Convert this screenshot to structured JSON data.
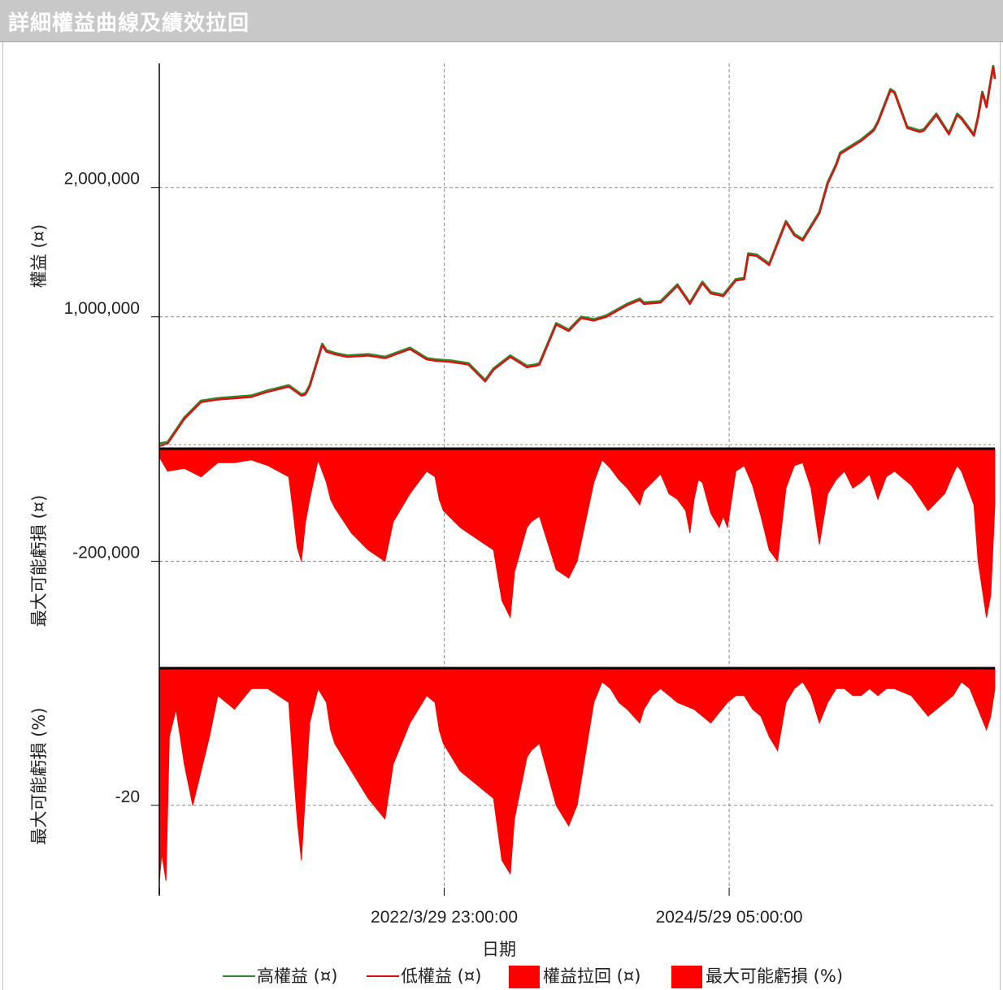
{
  "window": {
    "title": "詳細權益曲線及績效拉回"
  },
  "colors": {
    "high_equity": "#2e8b2e",
    "low_equity": "#e01010",
    "drawdown_fill": "#ff0000",
    "grid": "#8c8c8c",
    "axis": "#000000"
  },
  "chart_data": [
    {
      "type": "line",
      "ylabel": "權益 (¤)",
      "ylim": [
        -20000,
        2960000
      ],
      "yticks": [
        1000000,
        2000000
      ],
      "ytick_labels": [
        "1,000,000",
        "2,000,000"
      ],
      "grid": true,
      "x": [
        0,
        0.01,
        0.03,
        0.05,
        0.07,
        0.09,
        0.11,
        0.13,
        0.155,
        0.17,
        0.175,
        0.18,
        0.195,
        0.2,
        0.21,
        0.225,
        0.25,
        0.27,
        0.3,
        0.32,
        0.33,
        0.35,
        0.37,
        0.39,
        0.4,
        0.42,
        0.44,
        0.45,
        0.455,
        0.475,
        0.49,
        0.505,
        0.52,
        0.525,
        0.53,
        0.535,
        0.56,
        0.575,
        0.58,
        0.6,
        0.62,
        0.635,
        0.65,
        0.66,
        0.675,
        0.69,
        0.7,
        0.7,
        0.705,
        0.715,
        0.73,
        0.75,
        0.76,
        0.77,
        0.79,
        0.8,
        0.81,
        0.815,
        0.84,
        0.855,
        0.86,
        0.875,
        0.88,
        0.895,
        0.9,
        0.91,
        0.915,
        0.93,
        0.945,
        0.955,
        0.96,
        0.975,
        0.98,
        0.985,
        0.99,
        0.995,
        0.998,
        1.0
      ],
      "series": [
        {
          "name": "高權益 (¤)",
          "values": [
            20000,
            30000,
            220000,
            350000,
            370000,
            380000,
            390000,
            430000,
            470000,
            400000,
            410000,
            470000,
            790000,
            740000,
            720000,
            700000,
            710000,
            690000,
            760000,
            680000,
            670000,
            660000,
            640000,
            510000,
            600000,
            700000,
            620000,
            630000,
            640000,
            950000,
            900000,
            1000000,
            980000,
            990000,
            1000000,
            1010000,
            1100000,
            1140000,
            1110000,
            1120000,
            1250000,
            1110000,
            1270000,
            1190000,
            1170000,
            1290000,
            1300000,
            1300000,
            1490000,
            1480000,
            1410000,
            1740000,
            1640000,
            1600000,
            1810000,
            2040000,
            2180000,
            2270000,
            2370000,
            2450000,
            2510000,
            2760000,
            2740000,
            2470000,
            2460000,
            2440000,
            2450000,
            2570000,
            2420000,
            2570000,
            2540000,
            2410000,
            2550000,
            2740000,
            2630000,
            2830000,
            2940000,
            2850000
          ]
        },
        {
          "name": "低權益 (¤)",
          "values": [
            0,
            20000,
            210000,
            340000,
            360000,
            370000,
            380000,
            420000,
            460000,
            390000,
            400000,
            460000,
            780000,
            730000,
            710000,
            690000,
            700000,
            680000,
            750000,
            670000,
            660000,
            650000,
            630000,
            500000,
            590000,
            690000,
            610000,
            620000,
            630000,
            940000,
            890000,
            990000,
            970000,
            980000,
            990000,
            1000000,
            1090000,
            1130000,
            1100000,
            1110000,
            1240000,
            1100000,
            1260000,
            1180000,
            1160000,
            1280000,
            1290000,
            1290000,
            1480000,
            1470000,
            1400000,
            1730000,
            1630000,
            1590000,
            1800000,
            2030000,
            2170000,
            2260000,
            2360000,
            2440000,
            2500000,
            2750000,
            2730000,
            2460000,
            2450000,
            2430000,
            2440000,
            2560000,
            2410000,
            2560000,
            2530000,
            2400000,
            2540000,
            2730000,
            2620000,
            2820000,
            2930000,
            2840000
          ]
        }
      ]
    },
    {
      "type": "area",
      "ylabel": "最大可能虧損 (¤)",
      "ylim": [
        -390000,
        0
      ],
      "yticks": [
        -200000
      ],
      "ytick_labels": [
        "-200,000"
      ],
      "grid": true,
      "series": [
        {
          "name": "權益拉回 (¤)",
          "x": [
            0,
            0.01,
            0.03,
            0.05,
            0.07,
            0.09,
            0.11,
            0.13,
            0.155,
            0.16,
            0.165,
            0.17,
            0.175,
            0.18,
            0.19,
            0.2,
            0.205,
            0.21,
            0.23,
            0.25,
            0.27,
            0.28,
            0.3,
            0.32,
            0.33,
            0.335,
            0.34,
            0.36,
            0.38,
            0.4,
            0.41,
            0.42,
            0.425,
            0.44,
            0.445,
            0.455,
            0.475,
            0.49,
            0.5,
            0.52,
            0.53,
            0.54,
            0.55,
            0.56,
            0.575,
            0.58,
            0.59,
            0.6,
            0.61,
            0.62,
            0.63,
            0.635,
            0.64,
            0.645,
            0.65,
            0.66,
            0.67,
            0.675,
            0.68,
            0.69,
            0.7,
            0.71,
            0.72,
            0.73,
            0.74,
            0.75,
            0.76,
            0.77,
            0.78,
            0.79,
            0.8,
            0.81,
            0.82,
            0.83,
            0.84,
            0.85,
            0.86,
            0.87,
            0.88,
            0.9,
            0.92,
            0.94,
            0.95,
            0.955,
            0.96,
            0.97,
            0.975,
            0.98,
            0.99,
            0.995,
            1.0
          ],
          "values": [
            -15000,
            -40000,
            -35000,
            -50000,
            -25000,
            -25000,
            -20000,
            -30000,
            -50000,
            -110000,
            -175000,
            -200000,
            -130000,
            -90000,
            -20000,
            -60000,
            -90000,
            -105000,
            -150000,
            -180000,
            -200000,
            -130000,
            -80000,
            -40000,
            -50000,
            -90000,
            -110000,
            -140000,
            -160000,
            -180000,
            -270000,
            -300000,
            -220000,
            -140000,
            -130000,
            -120000,
            -215000,
            -230000,
            -200000,
            -60000,
            -20000,
            -35000,
            -55000,
            -70000,
            -100000,
            -75000,
            -60000,
            -45000,
            -80000,
            -90000,
            -110000,
            -150000,
            -90000,
            -55000,
            -60000,
            -115000,
            -140000,
            -120000,
            -140000,
            -40000,
            -30000,
            -65000,
            -120000,
            -180000,
            -200000,
            -70000,
            -30000,
            -25000,
            -70000,
            -170000,
            -80000,
            -55000,
            -40000,
            -70000,
            -60000,
            -45000,
            -90000,
            -50000,
            -40000,
            -65000,
            -110000,
            -80000,
            -45000,
            -30000,
            -40000,
            -80000,
            -100000,
            -200000,
            -300000,
            -260000,
            -100000
          ]
        }
      ]
    },
    {
      "type": "area",
      "ylabel": "最大可能虧損 (%)",
      "ylim": [
        -32,
        0
      ],
      "yticks": [
        -20
      ],
      "ytick_labels": [
        "-20"
      ],
      "grid": true,
      "xlabel": "日期",
      "xtick_labels": [
        "2022/3/29 23:00:00",
        "2024/5/29 05:00:00"
      ],
      "xtick_positions": [
        0.341,
        0.682
      ],
      "series": [
        {
          "name": "最大可能虧損 (%)",
          "x": [
            0,
            0.003,
            0.008,
            0.012,
            0.02,
            0.03,
            0.04,
            0.05,
            0.06,
            0.07,
            0.09,
            0.11,
            0.13,
            0.155,
            0.16,
            0.165,
            0.17,
            0.175,
            0.18,
            0.19,
            0.2,
            0.205,
            0.21,
            0.23,
            0.25,
            0.27,
            0.28,
            0.3,
            0.32,
            0.33,
            0.335,
            0.34,
            0.36,
            0.38,
            0.4,
            0.41,
            0.42,
            0.425,
            0.44,
            0.445,
            0.455,
            0.475,
            0.49,
            0.5,
            0.52,
            0.53,
            0.54,
            0.55,
            0.56,
            0.575,
            0.58,
            0.59,
            0.6,
            0.62,
            0.64,
            0.66,
            0.68,
            0.69,
            0.7,
            0.71,
            0.72,
            0.73,
            0.74,
            0.75,
            0.76,
            0.77,
            0.78,
            0.79,
            0.8,
            0.81,
            0.82,
            0.83,
            0.84,
            0.85,
            0.86,
            0.87,
            0.88,
            0.9,
            0.92,
            0.94,
            0.95,
            0.96,
            0.97,
            0.98,
            0.99,
            0.995,
            1.0
          ],
          "values": [
            -31,
            -27,
            -31,
            -10,
            -6,
            -14,
            -20,
            -15,
            -10,
            -4,
            -6,
            -3,
            -3,
            -5,
            -14,
            -22,
            -28,
            -18,
            -8,
            -3,
            -5,
            -9,
            -11,
            -15,
            -19,
            -22,
            -14,
            -8,
            -4,
            -5,
            -9,
            -11,
            -15,
            -17,
            -19,
            -28,
            -30,
            -22,
            -13,
            -12,
            -11,
            -20,
            -23,
            -20,
            -5,
            -2,
            -3,
            -5,
            -6,
            -8,
            -6,
            -4,
            -3,
            -5,
            -6,
            -8,
            -5,
            -4,
            -4,
            -6,
            -7,
            -10,
            -12,
            -5,
            -3,
            -2,
            -4,
            -8,
            -5,
            -3,
            -3,
            -4,
            -4,
            -3,
            -4,
            -3,
            -3,
            -4,
            -7,
            -5,
            -4,
            -2,
            -3,
            -6,
            -9,
            -7,
            -3
          ]
        }
      ]
    }
  ],
  "legend": {
    "items": [
      {
        "label": "高權益 (¤)",
        "kind": "line",
        "color": "#2e8b2e"
      },
      {
        "label": "低權益 (¤)",
        "kind": "line",
        "color": "#e01010"
      },
      {
        "label": "權益拉回 (¤)",
        "kind": "box",
        "color": "#ff0000"
      },
      {
        "label": "最大可能虧損 (%)",
        "kind": "box",
        "color": "#ff0000"
      }
    ]
  }
}
